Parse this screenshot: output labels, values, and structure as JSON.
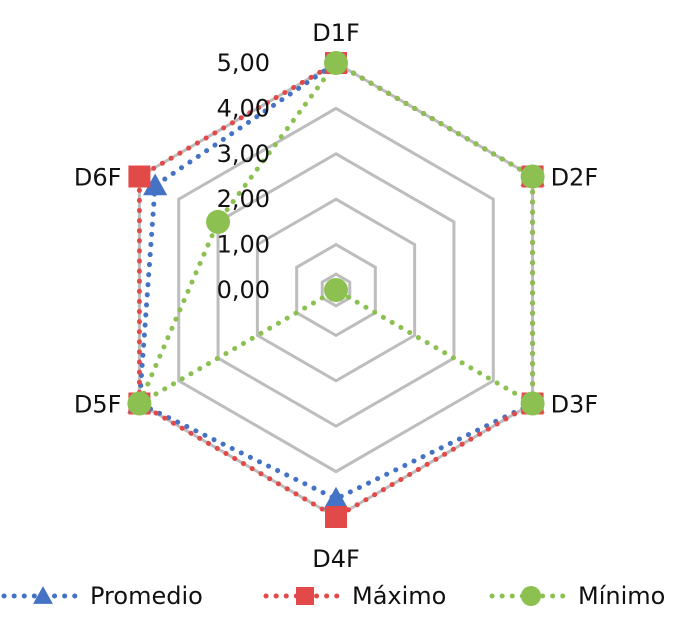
{
  "chart_data": {
    "type": "radar",
    "categories": [
      "D1F",
      "D2F",
      "D3F",
      "D4F",
      "D5F",
      "D6F"
    ],
    "rlim": [
      0,
      5
    ],
    "ticks": [
      "0,00",
      "1,00",
      "2,00",
      "3,00",
      "4,00",
      "5,00"
    ],
    "tick_values": [
      0,
      1,
      2,
      3,
      4,
      5
    ],
    "grid": true,
    "legend_position": "bottom",
    "series": [
      {
        "name": "Promedio",
        "values": [
          5.0,
          5.0,
          5.0,
          4.6,
          5.0,
          4.6
        ],
        "color": "#4472c4",
        "marker": "triangle"
      },
      {
        "name": "Máximo",
        "values": [
          5.0,
          5.0,
          5.0,
          5.0,
          5.0,
          5.0
        ],
        "color": "#e24a4a",
        "marker": "square"
      },
      {
        "name": "Mínimo",
        "values": [
          5.0,
          5.0,
          5.0,
          0.0,
          5.0,
          3.0
        ],
        "color": "#8cc152",
        "marker": "circle"
      }
    ]
  }
}
